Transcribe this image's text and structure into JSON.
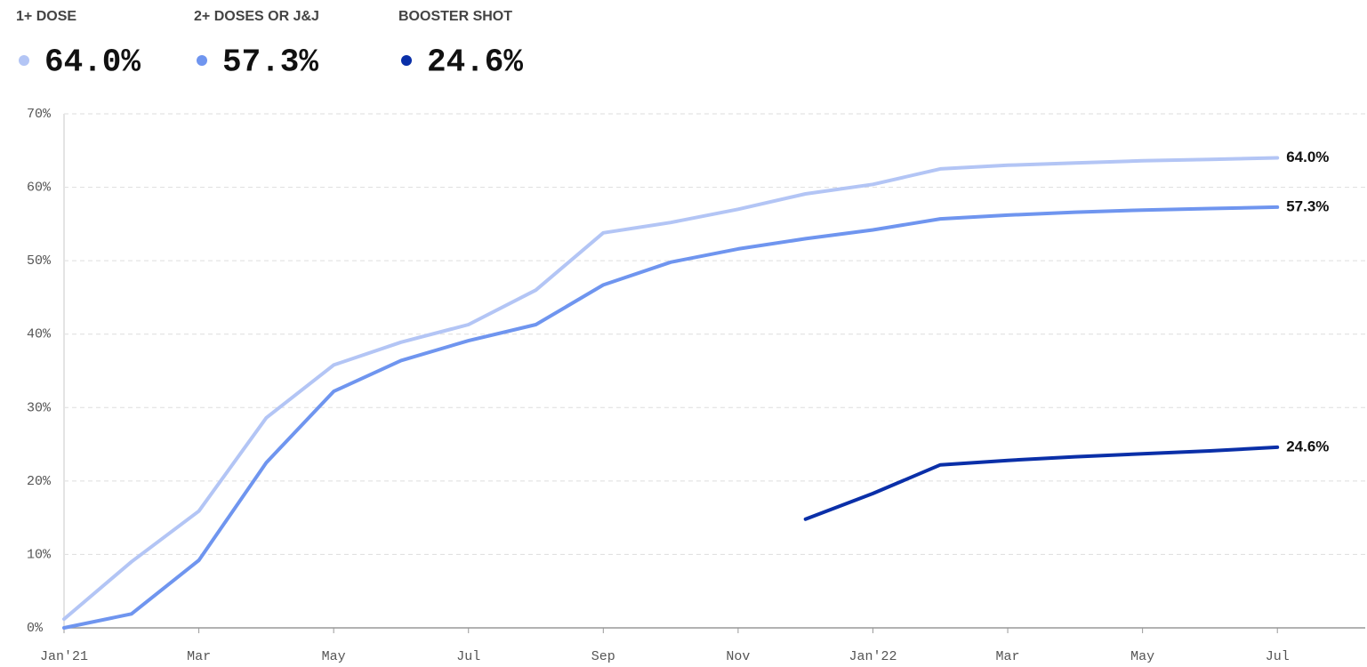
{
  "chart_data": {
    "type": "line",
    "x": [
      "2021-01",
      "2021-02",
      "2021-03",
      "2021-04",
      "2021-05",
      "2021-06",
      "2021-07",
      "2021-08",
      "2021-09",
      "2021-10",
      "2021-11",
      "2021-12",
      "2022-01",
      "2022-02",
      "2022-03",
      "2022-04",
      "2022-05",
      "2022-06",
      "2022-07"
    ],
    "series": [
      {
        "name": "1+ DOSE",
        "color": "#b3c5f5",
        "values": [
          1.2,
          9.0,
          15.9,
          28.6,
          35.8,
          38.9,
          41.3,
          46.0,
          53.8,
          55.2,
          57.0,
          59.1,
          60.4,
          62.5,
          63.0,
          63.3,
          63.6,
          63.8,
          64.0
        ],
        "value_labels": [
          null,
          null,
          null,
          null,
          null,
          null,
          null,
          null,
          null,
          null,
          null,
          null,
          null,
          null,
          null,
          null,
          null,
          null,
          "64.0%"
        ]
      },
      {
        "name": "2+ DOSES OR J&J",
        "color": "#6f95ef",
        "values": [
          0,
          1.9,
          9.2,
          22.5,
          32.2,
          36.4,
          39.1,
          41.3,
          46.7,
          49.8,
          51.6,
          53.0,
          54.2,
          55.7,
          56.2,
          56.6,
          56.9,
          57.1,
          57.3
        ],
        "value_labels": [
          null,
          null,
          null,
          null,
          null,
          null,
          null,
          null,
          null,
          null,
          null,
          null,
          null,
          null,
          null,
          null,
          null,
          null,
          "57.3%"
        ]
      },
      {
        "name": "BOOSTER SHOT",
        "color": "#0a2fa8",
        "values": [
          null,
          null,
          null,
          null,
          null,
          null,
          null,
          null,
          null,
          null,
          null,
          14.8,
          18.3,
          22.2,
          22.8,
          23.3,
          23.7,
          24.1,
          24.6
        ],
        "value_labels": [
          null,
          null,
          null,
          null,
          null,
          null,
          null,
          null,
          null,
          null,
          null,
          null,
          null,
          null,
          null,
          null,
          null,
          null,
          "24.6%"
        ]
      }
    ],
    "xlim": [
      "2021-01",
      "2022-08"
    ],
    "xticks": [
      {
        "value": "2021-01",
        "label": "Jan'21"
      },
      {
        "value": "2021-03",
        "label": "Mar"
      },
      {
        "value": "2021-05",
        "label": "May"
      },
      {
        "value": "2021-07",
        "label": "Jul"
      },
      {
        "value": "2021-09",
        "label": "Sep"
      },
      {
        "value": "2021-11",
        "label": "Nov"
      },
      {
        "value": "2022-01",
        "label": "Jan'22"
      },
      {
        "value": "2022-03",
        "label": "Mar"
      },
      {
        "value": "2022-05",
        "label": "May"
      },
      {
        "value": "2022-07",
        "label": "Jul"
      }
    ],
    "ylim": [
      0,
      70
    ],
    "yticks": [
      {
        "value": 0,
        "label": "0%"
      },
      {
        "value": 10,
        "label": "10%"
      },
      {
        "value": 20,
        "label": "20%"
      },
      {
        "value": 30,
        "label": "30%"
      },
      {
        "value": 40,
        "label": "40%"
      },
      {
        "value": 50,
        "label": "50%"
      },
      {
        "value": 60,
        "label": "60%"
      },
      {
        "value": 70,
        "label": "70%"
      }
    ],
    "grid": true
  }
}
